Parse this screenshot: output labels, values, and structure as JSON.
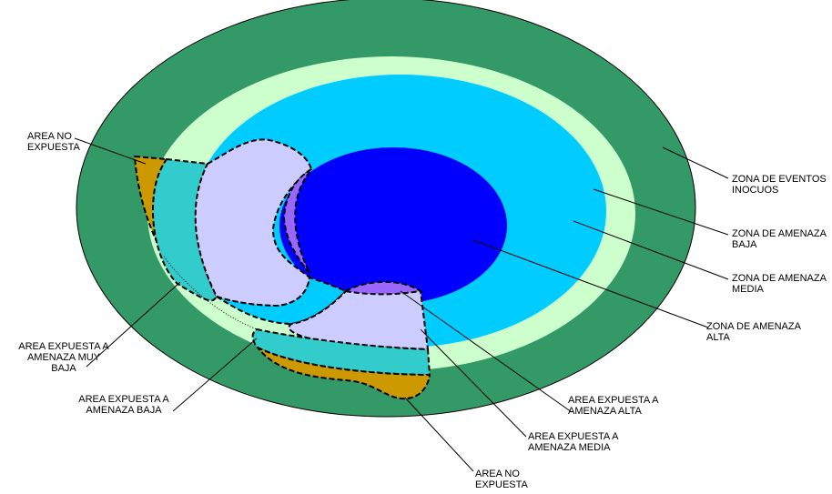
{
  "colors": {
    "zona_eventos_inocuos": "#339966",
    "zona_amenaza_baja": "#ccffcc",
    "zona_amenaza_media": "#00ccff",
    "zona_amenaza_alta": "#0000ff",
    "area_no_expuesta": "#cc9900",
    "area_amenaza_muy_baja": "#33cccc",
    "area_amenaza_baja": "#ccccff",
    "area_amenaza_alta": "#9966ff"
  },
  "labels": {
    "zona_eventos_inocuos": [
      "ZONA DE EVENTOS",
      "INOCUOS"
    ],
    "zona_amenaza_baja": [
      "ZONA DE AMENAZA",
      "BAJA"
    ],
    "zona_amenaza_media": [
      "ZONA DE AMENAZA",
      "MEDIA"
    ],
    "zona_amenaza_alta": [
      "ZONA DE AMENAZA",
      "ALTA"
    ],
    "area_no_expuesta_top": [
      "AREA NO",
      "EXPUESTA"
    ],
    "area_expuesta_muy_baja": [
      "AREA EXPUESTA A",
      "AMENAZA MUY",
      "BAJA"
    ],
    "area_expuesta_baja": [
      "AREA EXPUESTA A",
      "AMENAZA BAJA"
    ],
    "area_expuesta_alta": [
      "AREA EXPUESTA A",
      "AMENAZA ALTA"
    ],
    "area_expuesta_media": [
      "AREA EXPUESTA A",
      "AMENAZA  MEDIA"
    ],
    "area_no_expuesta_bottom": [
      "AREA NO",
      "EXPUESTA"
    ]
  }
}
